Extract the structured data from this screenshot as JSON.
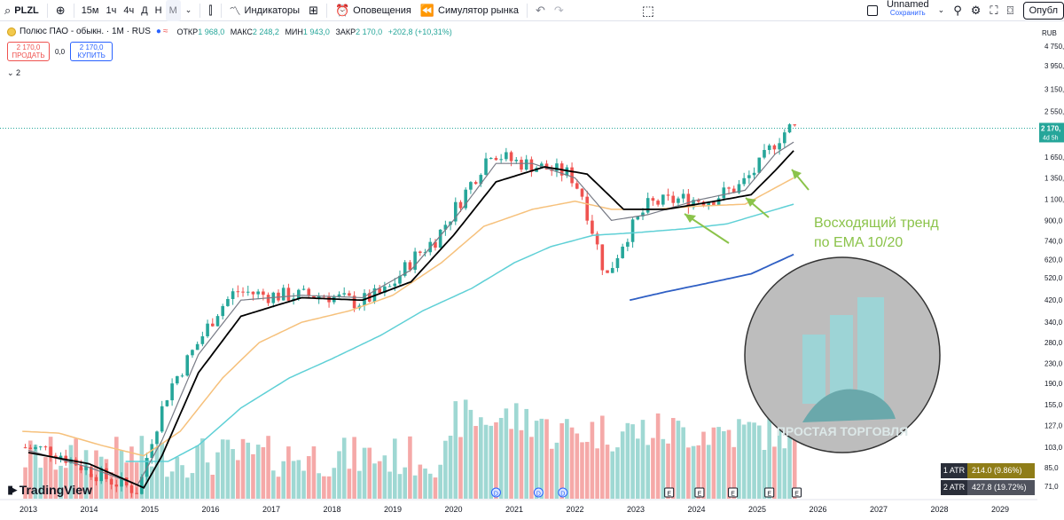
{
  "toolbar": {
    "symbol": "PLZL",
    "intervals": [
      "15м",
      "1ч",
      "4ч",
      "Д",
      "Н",
      "М"
    ],
    "active_interval": "М",
    "indicators_label": "Индикаторы",
    "alerts_label": "Оповещения",
    "replay_label": "Симулятор рынка",
    "layout_name": "Unnamed",
    "layout_sub": "Сохранить",
    "publish_label": "Опубл"
  },
  "legend": {
    "title": "Полюс ПАО - обыкн. · 1М · RUS",
    "open_label": "ОТКР",
    "open": "1 968,0",
    "high_label": "МАКС",
    "high": "2 248,2",
    "low_label": "МИН",
    "low": "1 943,0",
    "close_label": "ЗАКР",
    "close": "2 170,0",
    "change": "+202,8 (+10,31%)"
  },
  "trade": {
    "sell_price": "2 170,0",
    "sell_label": "ПРОДАТЬ",
    "spread": "0,0",
    "buy_price": "2 170,0",
    "buy_label": "КУПИТЬ"
  },
  "collapse_label": "2",
  "annotation": {
    "line1": "Восходящий тренд",
    "line2": "по EMA 10/20"
  },
  "watermark": "ПРОСТАЯ ТОРГОВЛЯ",
  "logo": "TradingView",
  "atr": [
    {
      "label": "1 ATR",
      "value": "214.0 (9.86%)"
    },
    {
      "label": "2 ATR",
      "value": "427.8 (19.72%)"
    }
  ],
  "colors": {
    "up": "#26a69a",
    "down": "#ef5350",
    "ema_fast": "#787b86",
    "ema_slow": "#000000",
    "ema_orange": "#f6c17c",
    "ema_cyan": "#5fd0d6",
    "ema_blue": "#2f5fc4",
    "annotation": "#8bc34a"
  },
  "chart_data": {
    "type": "line",
    "scale": "log",
    "currency": "RUB",
    "last_price_label": "2 170,",
    "countdown": "4d 5h",
    "y_ticks": [
      "4 750,",
      "3 950,",
      "3 150,",
      "2 550,",
      "2 170,",
      "1 650,",
      "1 350,",
      "1 100,",
      "900,0",
      "740,0",
      "620,0",
      "520,0",
      "420,0",
      "340,0",
      "280,0",
      "230,0",
      "190,0",
      "155,0",
      "127,0",
      "103,0",
      "85,0",
      "71,0"
    ],
    "y_tick_values": [
      4750,
      3950,
      3150,
      2550,
      2170,
      1650,
      1350,
      1100,
      900,
      740,
      620,
      520,
      420,
      340,
      280,
      230,
      190,
      155,
      127,
      103,
      85,
      71
    ],
    "x_ticks": [
      "2013",
      "2014",
      "2015",
      "2016",
      "2017",
      "2018",
      "2019",
      "2020",
      "2021",
      "2022",
      "2023",
      "2024",
      "2025",
      "2026",
      "2027",
      "2028",
      "2029"
    ],
    "x_tick_years": [
      2013,
      2014,
      2015,
      2016,
      2017,
      2018,
      2019,
      2020,
      2021,
      2022,
      2023,
      2024,
      2025,
      2026,
      2027,
      2028,
      2029
    ],
    "price_path": [
      [
        2013.0,
        103
      ],
      [
        2013.5,
        100
      ],
      [
        2014.0,
        85
      ],
      [
        2014.5,
        74
      ],
      [
        2014.9,
        68
      ],
      [
        2015.1,
        110
      ],
      [
        2015.4,
        180
      ],
      [
        2015.8,
        260
      ],
      [
        2016.2,
        380
      ],
      [
        2016.5,
        460
      ],
      [
        2017.0,
        440
      ],
      [
        2017.5,
        440
      ],
      [
        2018.0,
        440
      ],
      [
        2018.5,
        410
      ],
      [
        2019.0,
        460
      ],
      [
        2019.4,
        620
      ],
      [
        2019.8,
        760
      ],
      [
        2020.3,
        1200
      ],
      [
        2020.7,
        1750
      ],
      [
        2021.0,
        1600
      ],
      [
        2021.5,
        1500
      ],
      [
        2022.0,
        1400
      ],
      [
        2022.2,
        1150
      ],
      [
        2022.6,
        520
      ],
      [
        2022.9,
        760
      ],
      [
        2023.3,
        1050
      ],
      [
        2023.8,
        1100
      ],
      [
        2024.3,
        1100
      ],
      [
        2024.8,
        1250
      ],
      [
        2025.1,
        1500
      ],
      [
        2025.4,
        1950
      ],
      [
        2025.6,
        2170
      ]
    ],
    "ema_fast_path": [
      [
        2013.0,
        100
      ],
      [
        2014.0,
        85
      ],
      [
        2014.8,
        72
      ],
      [
        2015.2,
        110
      ],
      [
        2015.8,
        250
      ],
      [
        2016.5,
        420
      ],
      [
        2017.5,
        440
      ],
      [
        2018.5,
        430
      ],
      [
        2019.3,
        560
      ],
      [
        2020.0,
        900
      ],
      [
        2020.7,
        1550
      ],
      [
        2021.3,
        1550
      ],
      [
        2022.0,
        1350
      ],
      [
        2022.6,
        900
      ],
      [
        2023.2,
        950
      ],
      [
        2024.0,
        1090
      ],
      [
        2024.8,
        1200
      ],
      [
        2025.3,
        1700
      ],
      [
        2025.6,
        1900
      ]
    ],
    "ema_slow_path": [
      [
        2013.0,
        98
      ],
      [
        2014.0,
        88
      ],
      [
        2014.9,
        70
      ],
      [
        2015.2,
        95
      ],
      [
        2015.8,
        210
      ],
      [
        2016.5,
        360
      ],
      [
        2017.5,
        430
      ],
      [
        2018.5,
        420
      ],
      [
        2019.3,
        500
      ],
      [
        2020.0,
        780
      ],
      [
        2020.7,
        1300
      ],
      [
        2021.5,
        1500
      ],
      [
        2022.2,
        1400
      ],
      [
        2022.8,
        1000
      ],
      [
        2023.5,
        1000
      ],
      [
        2024.3,
        1080
      ],
      [
        2024.9,
        1150
      ],
      [
        2025.3,
        1450
      ],
      [
        2025.6,
        1750
      ]
    ],
    "ema_orange_path": [
      [
        2012.9,
        120
      ],
      [
        2013.5,
        118
      ],
      [
        2014.2,
        105
      ],
      [
        2014.9,
        95
      ],
      [
        2015.5,
        120
      ],
      [
        2016.2,
        200
      ],
      [
        2016.8,
        280
      ],
      [
        2017.5,
        340
      ],
      [
        2018.3,
        380
      ],
      [
        2019.0,
        440
      ],
      [
        2019.8,
        600
      ],
      [
        2020.5,
        850
      ],
      [
        2021.3,
        1000
      ],
      [
        2022.0,
        1080
      ],
      [
        2022.6,
        1000
      ],
      [
        2023.3,
        1000
      ],
      [
        2024.0,
        1030
      ],
      [
        2024.8,
        1050
      ],
      [
        2025.6,
        1350
      ]
    ],
    "ema_cyan_path": [
      [
        2014.6,
        90
      ],
      [
        2015.3,
        90
      ],
      [
        2015.8,
        105
      ],
      [
        2016.5,
        150
      ],
      [
        2017.3,
        200
      ],
      [
        2018.0,
        240
      ],
      [
        2018.8,
        300
      ],
      [
        2019.5,
        380
      ],
      [
        2020.3,
        470
      ],
      [
        2021.0,
        600
      ],
      [
        2021.6,
        700
      ],
      [
        2022.3,
        780
      ],
      [
        2023.0,
        800
      ],
      [
        2023.8,
        830
      ],
      [
        2024.5,
        870
      ],
      [
        2025.6,
        1050
      ]
    ],
    "ema_blue_path": [
      [
        2022.9,
        420
      ],
      [
        2023.5,
        455
      ],
      [
        2024.2,
        495
      ],
      [
        2024.9,
        540
      ],
      [
        2025.6,
        650
      ]
    ],
    "events": [
      {
        "type": "D",
        "x": 2020.7
      },
      {
        "type": "D",
        "x": 2021.4
      },
      {
        "type": "D",
        "x": 2021.8
      },
      {
        "type": "E",
        "x": 2023.55
      },
      {
        "type": "E",
        "x": 2024.05
      },
      {
        "type": "E",
        "x": 2024.6
      },
      {
        "type": "E",
        "x": 2025.2
      },
      {
        "type": "E",
        "x": 2025.65
      }
    ]
  }
}
